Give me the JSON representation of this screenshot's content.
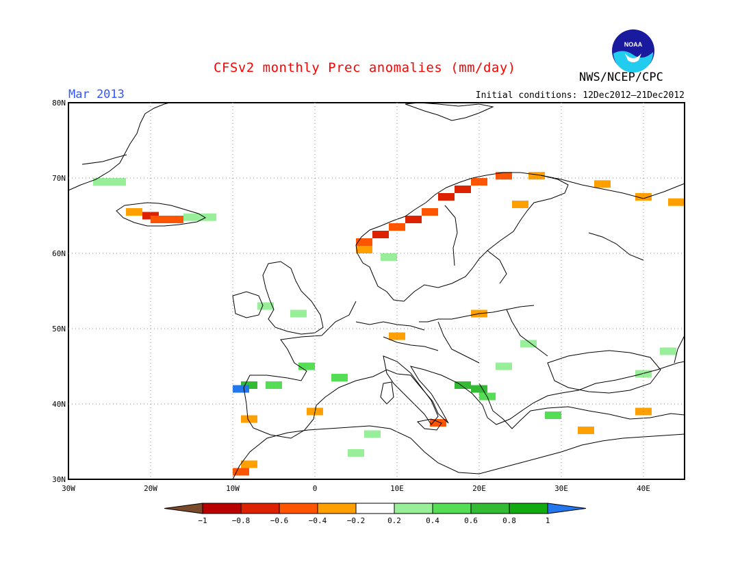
{
  "title": "CFSv2 monthly Prec anomalies (mm/day)",
  "agency": "NWS/NCEP/CPC",
  "logo_text": "NOAA",
  "valid_month": "Mar 2013",
  "initial_conditions": "Initial conditions: 12Dec2012–21Dec2012",
  "chart_data": {
    "type": "heatmap",
    "projection": "lat-lon",
    "lon_range": [
      -30,
      45
    ],
    "lat_range": [
      30,
      80
    ],
    "x_ticks": [
      "30W",
      "20W",
      "10W",
      "0",
      "10E",
      "20E",
      "30E",
      "40E"
    ],
    "y_ticks": [
      "30N",
      "40N",
      "50N",
      "60N",
      "70N",
      "80N"
    ],
    "grid": true,
    "colorbar": {
      "labels": [
        "−1",
        "−0.8",
        "−0.6",
        "−0.4",
        "−0.2",
        "0.2",
        "0.4",
        "0.6",
        "0.8",
        "1"
      ],
      "colors": [
        "#7a4a2a",
        "#b80000",
        "#dd2200",
        "#ff5500",
        "#ffa000",
        "#ffffff",
        "#99ee99",
        "#55dd55",
        "#33bb33",
        "#11aa11",
        "#2277ee"
      ]
    },
    "anomaly_cells": [
      {
        "lon": -24,
        "lat": 69.5,
        "value": 0.3
      },
      {
        "lon": -26,
        "lat": 69.5,
        "value": 0.3
      },
      {
        "lon": -22,
        "lat": 65.5,
        "value": -0.3
      },
      {
        "lon": -20,
        "lat": 65,
        "value": -0.7
      },
      {
        "lon": -19,
        "lat": 64.5,
        "value": -0.5
      },
      {
        "lon": -17,
        "lat": 64.5,
        "value": -0.5
      },
      {
        "lon": -15,
        "lat": 64.8,
        "value": 0.3
      },
      {
        "lon": -13,
        "lat": 64.8,
        "value": 0.3
      },
      {
        "lon": 6,
        "lat": 61.5,
        "value": -0.6
      },
      {
        "lon": 6,
        "lat": 60.5,
        "value": -0.3
      },
      {
        "lon": 8,
        "lat": 62.5,
        "value": -0.7
      },
      {
        "lon": 10,
        "lat": 63.5,
        "value": -0.5
      },
      {
        "lon": 12,
        "lat": 64.5,
        "value": -0.7
      },
      {
        "lon": 14,
        "lat": 65.5,
        "value": -0.5
      },
      {
        "lon": 16,
        "lat": 67.5,
        "value": -0.7
      },
      {
        "lon": 18,
        "lat": 68.5,
        "value": -0.8
      },
      {
        "lon": 20,
        "lat": 69.5,
        "value": -0.6
      },
      {
        "lon": 23,
        "lat": 70.3,
        "value": -0.5
      },
      {
        "lon": 27,
        "lat": 70.3,
        "value": -0.3
      },
      {
        "lon": 35,
        "lat": 69.2,
        "value": -0.3
      },
      {
        "lon": 40,
        "lat": 67.5,
        "value": -0.3
      },
      {
        "lon": 44,
        "lat": 66.8,
        "value": -0.3
      },
      {
        "lon": 25,
        "lat": 66.5,
        "value": -0.3
      },
      {
        "lon": 9,
        "lat": 59.5,
        "value": 0.3
      },
      {
        "lon": -6,
        "lat": 53,
        "value": 0.3
      },
      {
        "lon": -2,
        "lat": 52,
        "value": 0.3
      },
      {
        "lon": 20,
        "lat": 52,
        "value": -0.3
      },
      {
        "lon": 10,
        "lat": 49,
        "value": -0.3
      },
      {
        "lon": -1,
        "lat": 45,
        "value": 0.4
      },
      {
        "lon": 3,
        "lat": 43.5,
        "value": 0.4
      },
      {
        "lon": -8,
        "lat": 42.5,
        "value": 0.7
      },
      {
        "lon": -9,
        "lat": 42,
        "value": 1.0
      },
      {
        "lon": -5,
        "lat": 42.5,
        "value": 0.4
      },
      {
        "lon": 18,
        "lat": 42.5,
        "value": 0.7
      },
      {
        "lon": 20,
        "lat": 42,
        "value": 0.7
      },
      {
        "lon": 21,
        "lat": 41,
        "value": 0.5
      },
      {
        "lon": 23,
        "lat": 45,
        "value": 0.3
      },
      {
        "lon": 26,
        "lat": 48,
        "value": 0.3
      },
      {
        "lon": 40,
        "lat": 44,
        "value": 0.3
      },
      {
        "lon": 43,
        "lat": 47,
        "value": 0.3
      },
      {
        "lon": 40,
        "lat": 39,
        "value": -0.3
      },
      {
        "lon": -8,
        "lat": 38,
        "value": -0.3
      },
      {
        "lon": 0,
        "lat": 39,
        "value": -0.3
      },
      {
        "lon": 15,
        "lat": 37.5,
        "value": -0.5
      },
      {
        "lon": -9,
        "lat": 31,
        "value": -0.6
      },
      {
        "lon": -8,
        "lat": 32,
        "value": -0.3
      },
      {
        "lon": 5,
        "lat": 33.5,
        "value": 0.3
      },
      {
        "lon": 7,
        "lat": 36,
        "value": 0.3
      },
      {
        "lon": 29,
        "lat": 38.5,
        "value": 0.4
      },
      {
        "lon": 33,
        "lat": 36.5,
        "value": -0.3
      }
    ]
  }
}
